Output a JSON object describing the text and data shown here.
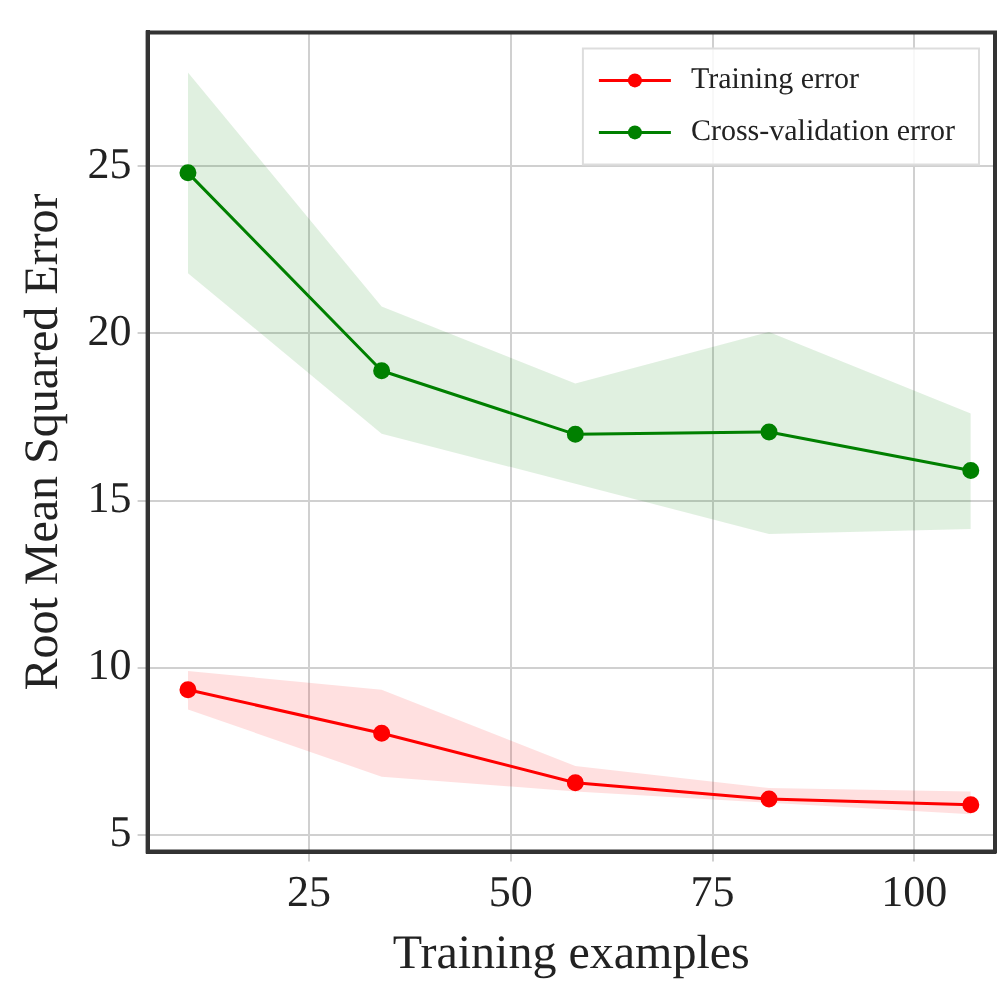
{
  "chart_data": {
    "type": "line",
    "xlabel": "Training examples",
    "ylabel": "Root Mean Squared Error",
    "x": [
      10,
      34,
      58,
      82,
      107
    ],
    "series": [
      {
        "name": "Training error",
        "color": "#ff0000",
        "values": [
          9.34,
          8.04,
          6.56,
          6.07,
          5.9
        ],
        "lower": [
          8.75,
          6.74,
          6.3,
          5.96,
          5.62
        ],
        "upper": [
          9.9,
          9.34,
          7.06,
          6.4,
          6.3
        ]
      },
      {
        "name": "Cross-validation error",
        "color": "#008000",
        "values": [
          24.8,
          18.88,
          16.98,
          17.05,
          15.9
        ],
        "lower": [
          21.8,
          17.0,
          15.5,
          14.0,
          14.15
        ],
        "upper": [
          27.8,
          20.8,
          18.5,
          20.04,
          17.6
        ]
      }
    ],
    "xlim": [
      5,
      110
    ],
    "xticks": [
      25,
      50,
      75,
      100
    ],
    "ylim": [
      4.5,
      29
    ],
    "yticks": [
      5,
      10,
      15,
      20,
      25
    ],
    "grid": true,
    "legend": "top right",
    "marker": "circle",
    "line_style": "solid"
  }
}
